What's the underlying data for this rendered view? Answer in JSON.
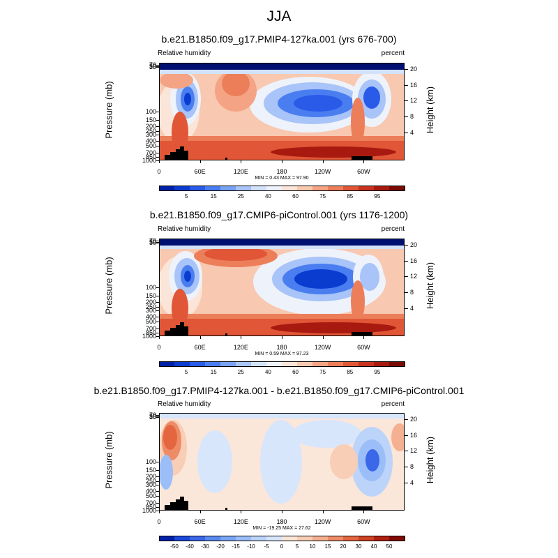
{
  "title": "JJA",
  "colors": {
    "abs_scale": [
      "#0020a8",
      "#0a3cd0",
      "#2a5ae8",
      "#4a7ef0",
      "#7aa2f4",
      "#a8c4f8",
      "#d2e2fb",
      "#eef2fb",
      "#fbe4d8",
      "#f8c8b0",
      "#f4a484",
      "#ec7e5a",
      "#e05636",
      "#c83220",
      "#a81a10",
      "#7a0a04"
    ],
    "diff_scale": [
      "#0020a8",
      "#1a48d8",
      "#3a68e8",
      "#5a8af0",
      "#7aa6f4",
      "#9cbef8",
      "#bcd4fa",
      "#d8e6fc",
      "#fbe6da",
      "#f8ceb6",
      "#f4b090",
      "#ee8c68",
      "#e46640",
      "#d04224",
      "#b02010",
      "#800a04"
    ],
    "topography": "#000000",
    "top_band": "#001070"
  },
  "chart_data": [
    {
      "type": "heatmap",
      "title": "b.e21.B1850.f09_g17.PMIP4-127ka.001 (yrs 676-700)",
      "left_label": "Relative humidity",
      "right_label": "percent",
      "ylabel": "Pressure (mb)",
      "y2label": "Height (km)",
      "x_ticks": [
        "0",
        "60E",
        "120E",
        "180",
        "120W",
        "60W"
      ],
      "y_ticks": [
        "1000",
        "850",
        "700",
        "500",
        "400",
        "300",
        "250",
        "200",
        "150",
        "100",
        "70",
        "50",
        "30"
      ],
      "y2_ticks": [
        "4",
        "8",
        "12",
        "16",
        "20"
      ],
      "min_max_text": "MIN =   0.43  MAX =   97.90",
      "colorbar_ticks": [
        "5",
        "15",
        "25",
        "40",
        "60",
        "75",
        "85",
        "95"
      ]
    },
    {
      "type": "heatmap",
      "title": "b.e21.B1850.f09_g17.CMIP6-piControl.001 (yrs 1176-1200)",
      "left_label": "Relative humidity",
      "right_label": "percent",
      "ylabel": "Pressure (mb)",
      "y2label": "Height (km)",
      "x_ticks": [
        "0",
        "60E",
        "120E",
        "180",
        "120W",
        "60W"
      ],
      "y_ticks": [
        "1000",
        "850",
        "700",
        "500",
        "400",
        "300",
        "250",
        "200",
        "150",
        "100",
        "70",
        "50",
        "30"
      ],
      "y2_ticks": [
        "4",
        "8",
        "12",
        "16",
        "20"
      ],
      "min_max_text": "MIN =   0.59  MAX =   97.23",
      "colorbar_ticks": [
        "5",
        "15",
        "25",
        "40",
        "60",
        "75",
        "85",
        "95"
      ]
    },
    {
      "type": "heatmap",
      "title": "b.e21.B1850.f09_g17.PMIP4-127ka.001 - b.e21.B1850.f09_g17.CMIP6-piControl.001",
      "left_label": "Relative humidity",
      "right_label": "percent",
      "ylabel": "Pressure (mb)",
      "y2label": "Height (km)",
      "x_ticks": [
        "0",
        "60E",
        "120E",
        "180",
        "120W",
        "60W"
      ],
      "y_ticks": [
        "1000",
        "850",
        "700",
        "500",
        "400",
        "300",
        "250",
        "200",
        "150",
        "100",
        "70",
        "50",
        "30"
      ],
      "y2_ticks": [
        "4",
        "8",
        "12",
        "16",
        "20"
      ],
      "min_max_text": "MIN = -19.25  MAX =  27.62",
      "colorbar_ticks": [
        "-50",
        "-40",
        "-30",
        "-20",
        "-15",
        "-10",
        "-5",
        "0",
        "5",
        "10",
        "15",
        "20",
        "30",
        "40",
        "50"
      ]
    }
  ]
}
